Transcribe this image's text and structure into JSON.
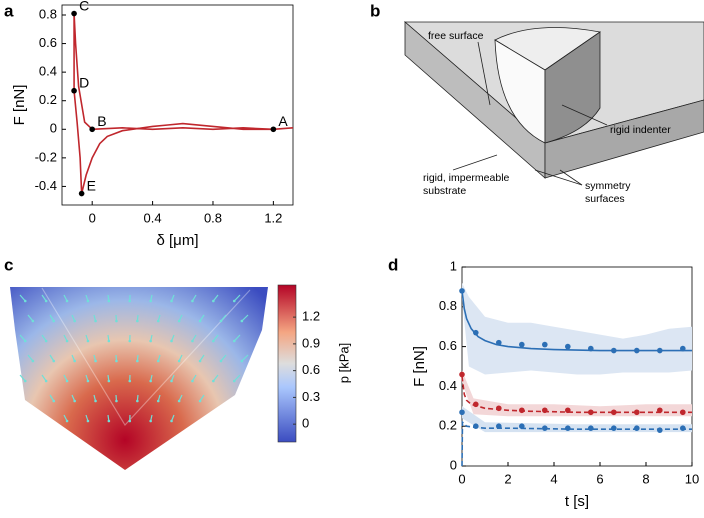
{
  "panel_labels": [
    "a",
    "b",
    "c",
    "d"
  ],
  "chart_data": [
    {
      "type": "line",
      "xlabel": "δ [μm]",
      "ylabel": "F [nN]",
      "xlim": [
        -0.2,
        1.33
      ],
      "ylim": [
        -0.53,
        0.87
      ],
      "xticks": [
        0,
        0.4,
        0.8,
        1.2
      ],
      "yticks": [
        -0.4,
        -0.2,
        0,
        0.2,
        0.4,
        0.6,
        0.8
      ],
      "series": [
        {
          "color": "#c0272d",
          "x": [
            1.33,
            1.2,
            1.0,
            0.8,
            0.6,
            0.4,
            0.2,
            0,
            -0.05,
            -0.09,
            -0.11,
            -0.12,
            -0.12,
            -0.12,
            -0.1,
            -0.08,
            -0.07,
            -0.04,
            0,
            0.05,
            0.1,
            0.2,
            0.4,
            0.5,
            0.6,
            0.8,
            1.0,
            1.2,
            1.33
          ],
          "values": [
            0.01,
            0.0,
            0.01,
            0.0,
            0.01,
            0.0,
            0.01,
            0,
            0.05,
            0.3,
            0.6,
            0.81,
            0.5,
            0.27,
            0.05,
            -0.2,
            -0.45,
            -0.32,
            -0.2,
            -0.1,
            -0.05,
            -0.01,
            0.02,
            0.03,
            0.04,
            0.02,
            0.0,
            0.0,
            0.01
          ]
        }
      ],
      "annotations": [
        {
          "label": "A",
          "x": 1.2,
          "y": 0.0
        },
        {
          "label": "B",
          "x": 0,
          "y": 0
        },
        {
          "label": "C",
          "x": -0.12,
          "y": 0.81
        },
        {
          "label": "D",
          "x": -0.12,
          "y": 0.27
        },
        {
          "label": "E",
          "x": -0.07,
          "y": -0.45
        }
      ]
    },
    {
      "type": "line",
      "xlabel": "t [s]",
      "ylabel": "F [nN]",
      "xlim": [
        0,
        10
      ],
      "ylim": [
        0,
        1
      ],
      "xticks": [
        0,
        2,
        4,
        6,
        8,
        10
      ],
      "yticks": [
        0,
        0.2,
        0.4,
        0.6,
        0.8,
        1
      ],
      "series": [
        {
          "style": "band",
          "color": "#dce6f3",
          "x": [
            0,
            0.3,
            1,
            2,
            3,
            4,
            5,
            6,
            7,
            8,
            9,
            10
          ],
          "upper": [
            0.92,
            0.85,
            0.75,
            0.72,
            0.72,
            0.7,
            0.68,
            0.66,
            0.64,
            0.66,
            0.69,
            0.7
          ],
          "lower": [
            0.84,
            0.5,
            0.46,
            0.47,
            0.48,
            0.47,
            0.46,
            0.46,
            0.47,
            0.47,
            0.47,
            0.48
          ]
        },
        {
          "style": "band",
          "color": "#f3d7d8",
          "x": [
            0,
            0.5,
            2,
            4,
            6,
            8,
            10
          ],
          "upper": [
            0.48,
            0.34,
            0.31,
            0.31,
            0.3,
            0.31,
            0.31
          ],
          "lower": [
            0.42,
            0.26,
            0.25,
            0.25,
            0.25,
            0.25,
            0.25
          ]
        },
        {
          "style": "band",
          "color": "#d5e2f1",
          "x": [
            0,
            1,
            5,
            10
          ],
          "upper": [
            0.3,
            0.22,
            0.21,
            0.21
          ],
          "lower": [
            0.24,
            0.17,
            0.17,
            0.17
          ]
        },
        {
          "style": "solid",
          "color": "#2c6fb5",
          "x": [
            0,
            0.1,
            0.2,
            0.4,
            0.7,
            1,
            1.5,
            2,
            3,
            4,
            6,
            8,
            10
          ],
          "values": [
            0.88,
            0.79,
            0.74,
            0.69,
            0.65,
            0.63,
            0.61,
            0.6,
            0.59,
            0.585,
            0.58,
            0.58,
            0.58
          ]
        },
        {
          "style": "dashed",
          "color": "#c0272d",
          "x": [
            0,
            0.1,
            0.2,
            0.4,
            0.7,
            1,
            2,
            3,
            5,
            10
          ],
          "values": [
            0.45,
            0.36,
            0.33,
            0.31,
            0.3,
            0.29,
            0.28,
            0.275,
            0.27,
            0.27
          ]
        },
        {
          "style": "dashed",
          "color": "#2c6fb5",
          "x": [
            0,
            0.02,
            0.2,
            0.5,
            1,
            2,
            5,
            10
          ],
          "values": [
            0.0,
            0.22,
            0.2,
            0.195,
            0.19,
            0.19,
            0.185,
            0.185
          ]
        },
        {
          "style": "markers",
          "color": "#2c6fb5",
          "x": [
            0,
            0.6,
            1.6,
            2.6,
            3.6,
            4.6,
            5.6,
            6.6,
            7.6,
            8.6,
            9.6
          ],
          "values": [
            0.88,
            0.67,
            0.62,
            0.61,
            0.61,
            0.6,
            0.59,
            0.58,
            0.58,
            0.58,
            0.59
          ]
        },
        {
          "style": "markers",
          "color": "#c0272d",
          "x": [
            0,
            0.6,
            1.6,
            2.6,
            3.6,
            4.6,
            5.6,
            6.6,
            7.6,
            8.6,
            9.6
          ],
          "values": [
            0.46,
            0.31,
            0.29,
            0.28,
            0.28,
            0.28,
            0.27,
            0.27,
            0.27,
            0.28,
            0.27
          ]
        },
        {
          "style": "markers",
          "color": "#2c6fb5",
          "x": [
            0,
            0.6,
            1.6,
            2.6,
            3.6,
            4.6,
            5.6,
            6.6,
            7.6,
            8.6,
            9.6
          ],
          "values": [
            0.27,
            0.2,
            0.2,
            0.2,
            0.19,
            0.19,
            0.19,
            0.19,
            0.19,
            0.18,
            0.19
          ]
        }
      ]
    }
  ],
  "diagram": {
    "free_surface": "free surface",
    "rigid_indenter": "rigid indenter",
    "substrate": [
      "rigid, impermeable",
      "substrate"
    ],
    "symmetry": [
      "symmetry",
      "surfaces"
    ]
  },
  "colorbar": {
    "label": "p [kPa]",
    "lim": [
      -0.2,
      1.56
    ],
    "ticks": [
      {
        "value": 0,
        "label": "0"
      },
      {
        "value": 0.3,
        "label": "0.3"
      },
      {
        "value": 0.6,
        "label": "0.6"
      },
      {
        "value": 0.9,
        "label": "0.9"
      },
      {
        "value": 1.2,
        "label": "1.2"
      }
    ]
  }
}
